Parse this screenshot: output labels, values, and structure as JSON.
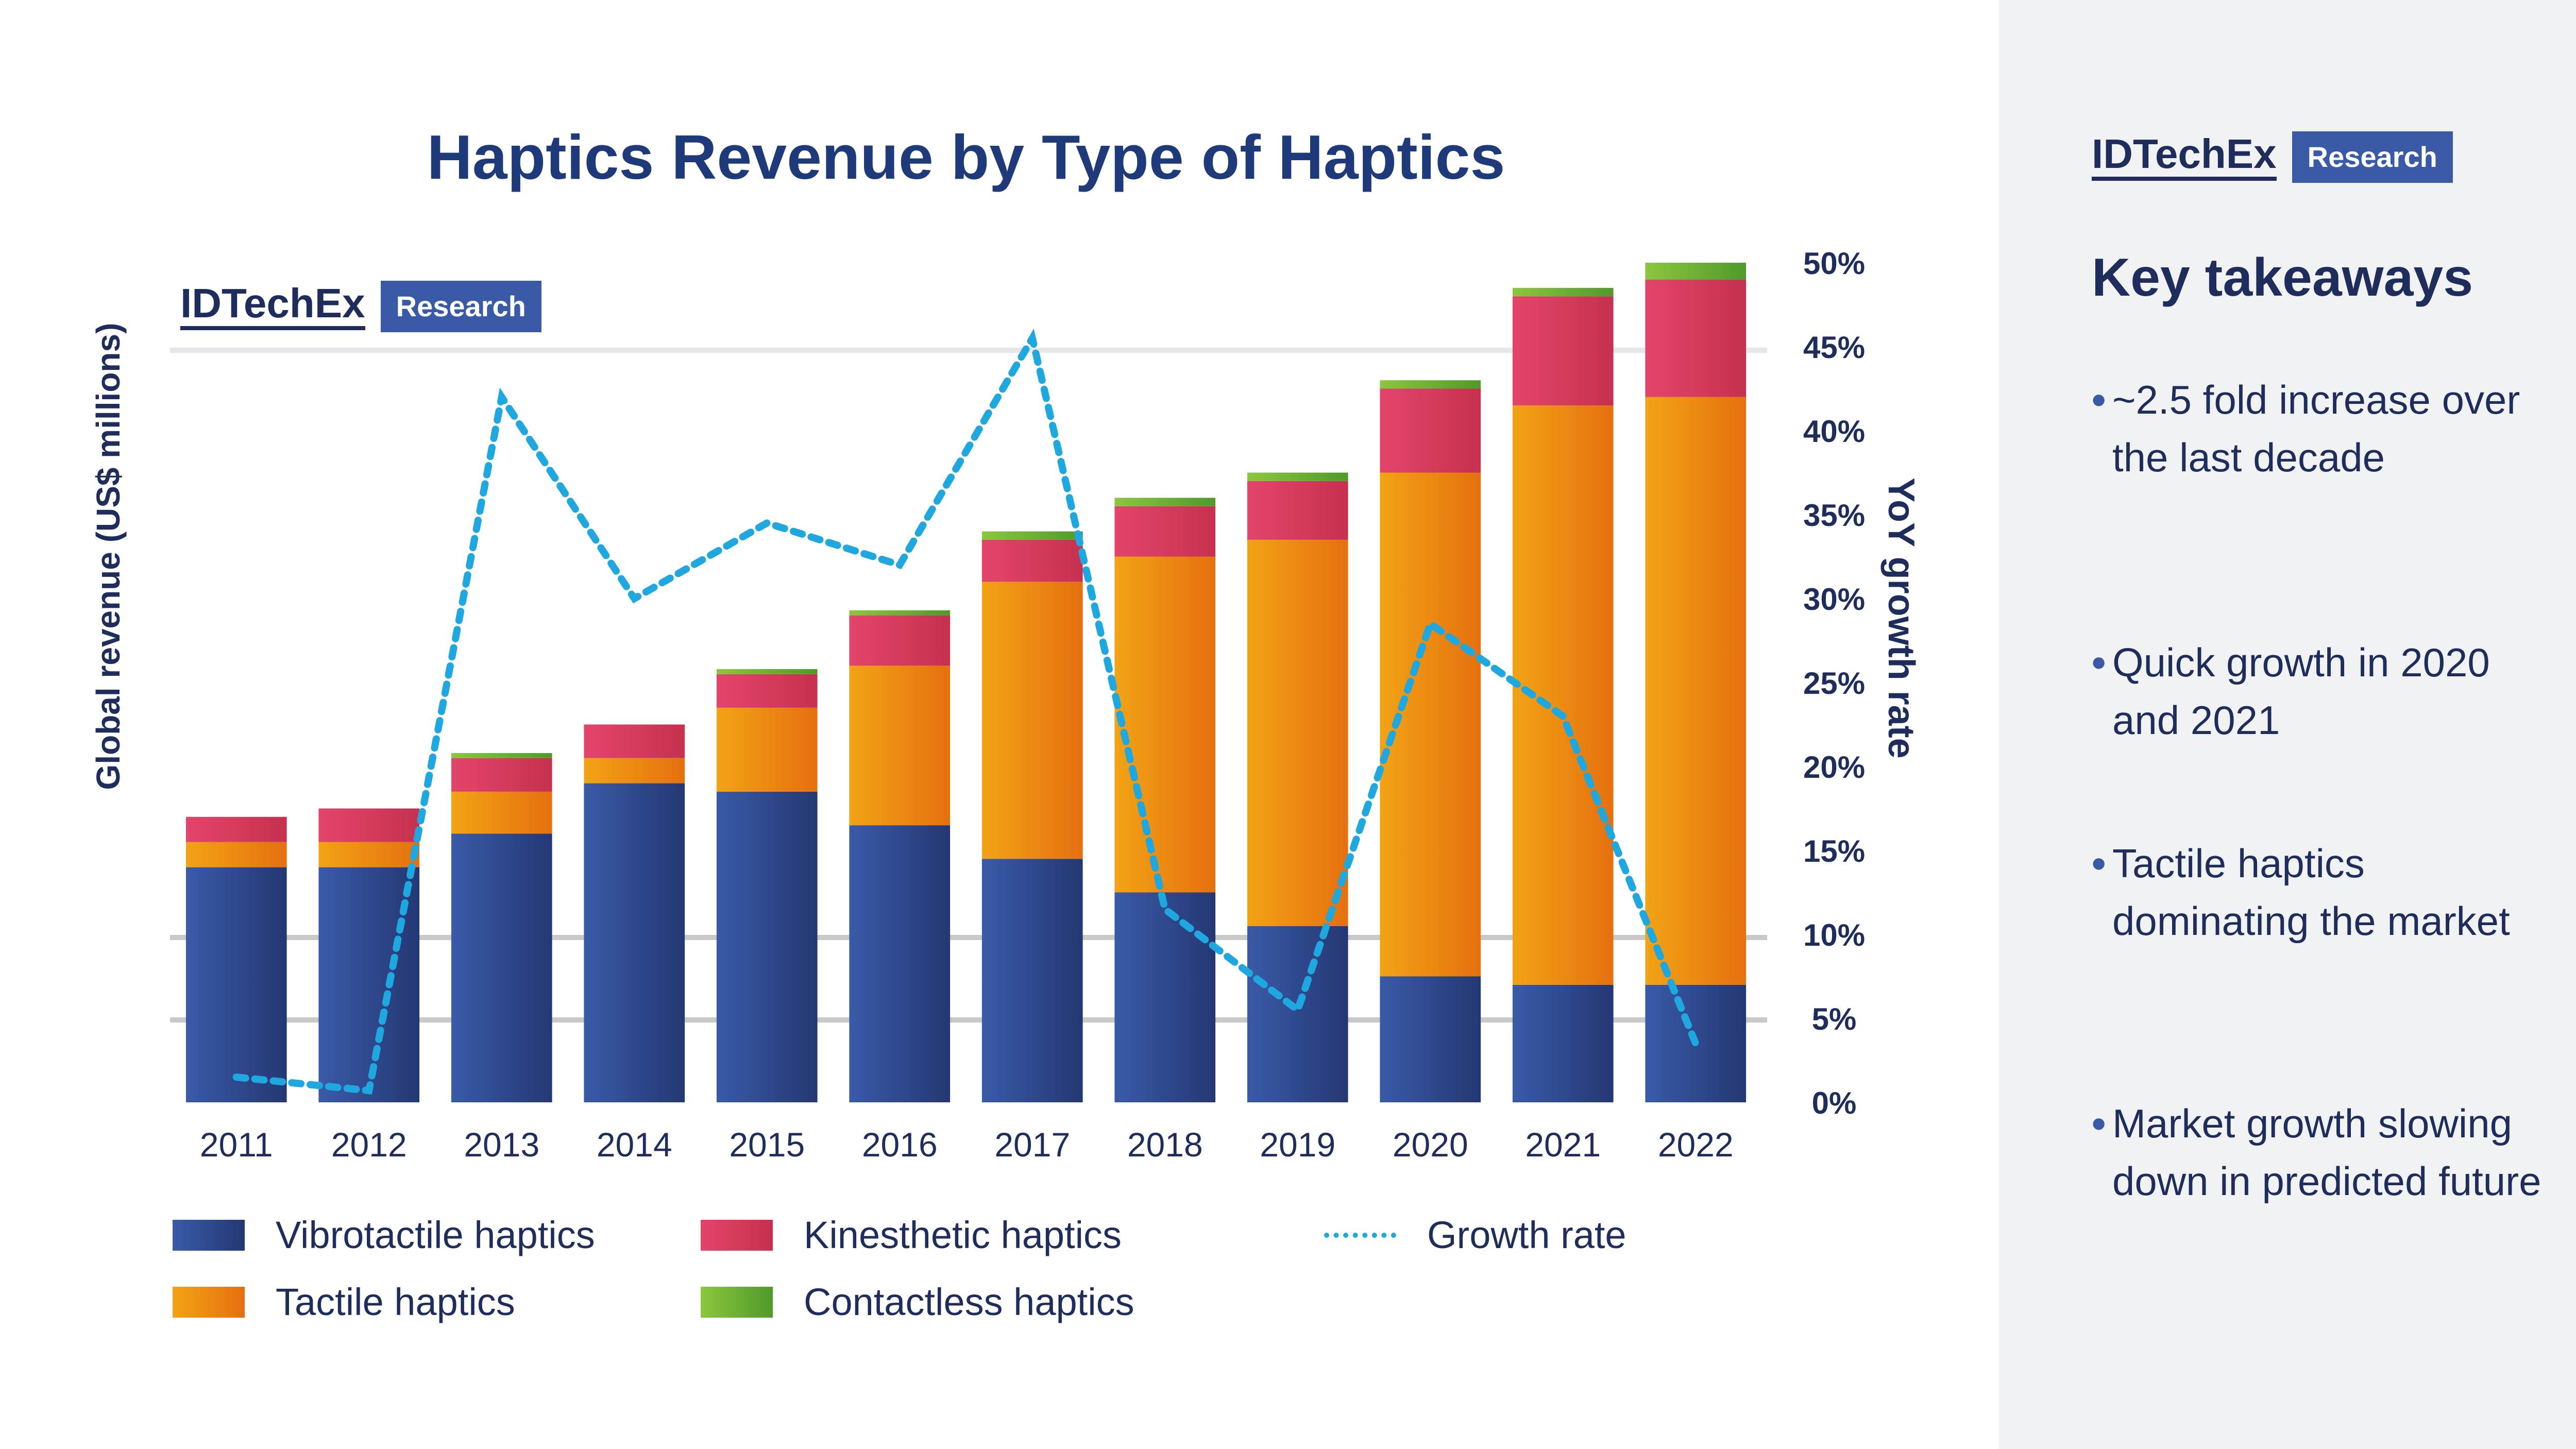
{
  "title": "Haptics Revenue by Type of Haptics",
  "brand": {
    "name": "IDTechEx",
    "tag": "Research"
  },
  "right_axis_title": "YoY growth rate",
  "left_axis_title": "Global revenue (US$ millions)",
  "colors": {
    "vibrotactile": "#2e4a8f",
    "tactile": "#f29a16",
    "kinesthetic": "#d63b5d",
    "contactless": "#6fb62f",
    "growth": "#1fa8e0",
    "sidebar": "#f1f2f3"
  },
  "sidebar": {
    "title": "Key takeaways",
    "bullet": "•",
    "items": [
      "~2.5 fold increase over the last decade",
      "Quick growth in 2020 and 2021",
      "Tactile haptics dominating the market",
      "Market growth slowing down in predicted future"
    ]
  },
  "legend": [
    {
      "label": "Vibrotactile haptics",
      "color": "#2e4a8f"
    },
    {
      "label": "Kinesthetic haptics",
      "color": "#d63b5d"
    },
    {
      "label": "Growth rate",
      "color": "#1fa8e0"
    },
    {
      "label": "Tactile haptics",
      "color": "#f29a16"
    },
    {
      "label": "Contactless haptics",
      "color": "#6fb62f"
    }
  ],
  "chart_data": {
    "type": "bar",
    "stacked": true,
    "categories": [
      "2011",
      "2012",
      "2013",
      "2014",
      "2015",
      "2016",
      "2017",
      "2018",
      "2019",
      "2020",
      "2021",
      "2022"
    ],
    "series": [
      {
        "name": "Vibrotactile haptics",
        "values": [
          1400,
          1400,
          1600,
          1900,
          1850,
          1650,
          1450,
          1250,
          1050,
          750,
          700,
          700
        ]
      },
      {
        "name": "Tactile haptics",
        "values": [
          150,
          150,
          250,
          150,
          500,
          950,
          1650,
          2000,
          2300,
          3000,
          3450,
          3500
        ]
      },
      {
        "name": "Kinesthetic haptics",
        "values": [
          150,
          200,
          200,
          200,
          200,
          300,
          250,
          300,
          350,
          500,
          650,
          700
        ]
      },
      {
        "name": "Contactless haptics",
        "values": [
          0,
          0,
          30,
          0,
          30,
          30,
          50,
          50,
          50,
          50,
          50,
          100
        ]
      }
    ],
    "line": {
      "name": "Growth rate",
      "axis": "right",
      "values": [
        1.5,
        0.7,
        42,
        30,
        34.5,
        32,
        45.5,
        11.5,
        5.5,
        28.5,
        23,
        3.5
      ]
    },
    "right_axis_ticks": [
      "0%",
      "5%",
      "10%",
      "15%",
      "20%",
      "25%",
      "30%",
      "35%",
      "40%",
      "45%",
      "50%"
    ],
    "right_ylim": [
      0,
      50
    ],
    "ylim": [
      0,
      5000
    ]
  }
}
